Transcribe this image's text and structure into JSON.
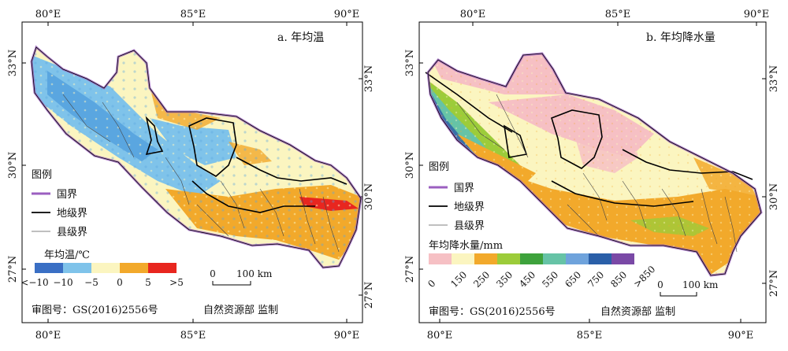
{
  "panels": [
    {
      "title": "a. 年均温",
      "lon_ticks": [
        "80°E",
        "85°E",
        "90°E"
      ],
      "lat_ticks": [
        "33°N",
        "30°N",
        "27°N"
      ],
      "legend": {
        "heading": "图例",
        "items": [
          "国界",
          "地级界",
          "县级界"
        ],
        "colorbar_title": "年均温/℃",
        "colorbar_labels": [
          "<−10",
          "−10",
          "−5",
          "0",
          "5",
          ">5"
        ],
        "colorbar_colors": [
          "#3a6fc4",
          "#7fc3ea",
          "#fbf5c0",
          "#f2a92b",
          "#e8261f"
        ]
      },
      "scale": {
        "zero": "0",
        "label": "100 km"
      },
      "footer": {
        "approval": "审图号：GS(2016)2556号",
        "authority": "自然资源部  监制"
      }
    },
    {
      "title": "b. 年均降水量",
      "lon_ticks": [
        "80°E",
        "85°E",
        "90°E"
      ],
      "lat_ticks": [
        "33°N",
        "30°N",
        "27°N"
      ],
      "legend": {
        "heading": "图例",
        "items": [
          "国界",
          "地级界",
          "县级界"
        ],
        "colorbar_title": "年均降水量/mm",
        "colorbar_labels": [
          "0",
          "150",
          "250",
          "350",
          "450",
          "550",
          "650",
          "750",
          "850",
          ">850"
        ],
        "colorbar_colors": [
          "#f6c0c4",
          "#fbf5c0",
          "#f2a92b",
          "#9ccc3a",
          "#3ea23c",
          "#66c3a6",
          "#6fa3dc",
          "#2a5fa8",
          "#7a49a6"
        ]
      },
      "scale": {
        "zero": "0",
        "label": "100 km"
      },
      "footer": {
        "approval": "审图号：GS(2016)2556号",
        "authority": "自然资源部  监制"
      }
    }
  ],
  "colors": {
    "national_border": "#9b5fc0",
    "prefecture_border": "#000000",
    "county_border": "#555555"
  }
}
